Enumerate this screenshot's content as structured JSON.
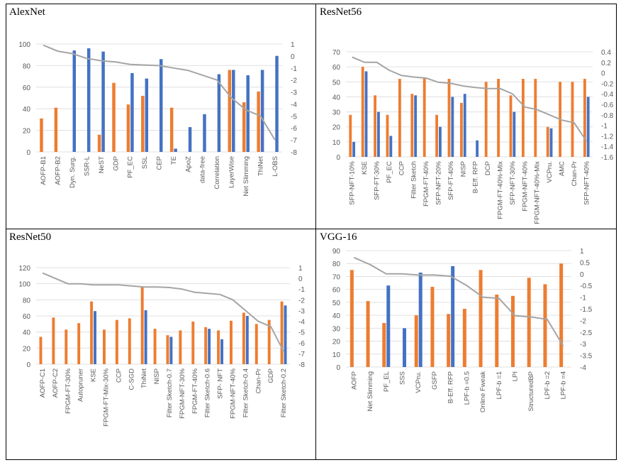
{
  "colors": {
    "orange": "#ED7D31",
    "blue": "#4472C4",
    "line": "#A5A5A5",
    "grid": "#E0E0E0",
    "text": "#595959"
  },
  "chart_data": [
    {
      "type": "bar",
      "title": "AlexNet",
      "categories": [
        "AOFP-B1",
        "AOFP-B2",
        "Dyn. Surg.",
        "SSR-L",
        "NeST",
        "GDP",
        "PF_EC",
        "SSL",
        "CEP",
        "TE",
        "ApoZ",
        "data-free",
        "Correlation",
        "LayerWise",
        "Net Slimming",
        "ThiNet",
        "L-OBS"
      ],
      "ylim": [
        0,
        100
      ],
      "yticks": [
        0,
        20,
        40,
        60,
        80,
        100
      ],
      "y2lim": [
        -8,
        1
      ],
      "y2ticks": [
        1,
        0,
        -1,
        -2,
        -3,
        -4,
        -5,
        -6,
        -7,
        -8
      ],
      "series": [
        {
          "name": "orange",
          "axis": "left",
          "values": [
            31,
            41,
            null,
            null,
            16,
            64,
            44,
            52,
            null,
            41,
            null,
            null,
            null,
            76,
            46,
            56,
            null
          ]
        },
        {
          "name": "blue",
          "axis": "left",
          "values": [
            null,
            null,
            94,
            96,
            93,
            null,
            73,
            68,
            86,
            3,
            23,
            35,
            72,
            76,
            71,
            76,
            89
          ]
        },
        {
          "name": "line",
          "axis": "right",
          "values": [
            0.9,
            0.4,
            0.2,
            -0.2,
            -0.4,
            -0.5,
            -0.7,
            -0.75,
            -0.8,
            -1.0,
            -1.2,
            -1.6,
            -2.0,
            -3.5,
            -4.5,
            -5.0,
            -7.0
          ]
        }
      ]
    },
    {
      "type": "bar",
      "title": "ResNet56",
      "categories": [
        "SFP-NFT-10%",
        "KSE",
        "SFP-FT-30%",
        "PF_EC",
        "CCP",
        "Filter Sketch",
        "FPGM-FT-40%",
        "SFP-NFT-20%",
        "SFP-FT-40%",
        "NISP",
        "B-Eff. RFP",
        "DCP",
        "FPGM-FT-40%-Mix",
        "SFP-NFT-30%",
        "FPGM-NFT-40%",
        "FPGM-NFT-40%-Mix",
        "VCPru.",
        "AMC",
        "Chan-Pr",
        "SFP-NFT-40%"
      ],
      "ylim": [
        0,
        70
      ],
      "yticks": [
        0,
        10,
        20,
        30,
        40,
        50,
        60,
        70
      ],
      "y2lim": [
        -1.6,
        0.4
      ],
      "y2ticks": [
        "0.4",
        "0.2",
        "0",
        "-0.2",
        "-0.4",
        "-0.6",
        "-0.8",
        "-1",
        "-1.2",
        "-1.4",
        "-1.6"
      ],
      "series": [
        {
          "name": "orange",
          "axis": "left",
          "values": [
            28,
            60,
            41,
            28,
            52,
            42,
            53,
            28,
            52,
            36,
            null,
            50,
            52,
            41,
            52,
            52,
            20,
            50,
            50,
            52
          ]
        },
        {
          "name": "blue",
          "axis": "left",
          "values": [
            10,
            57,
            30,
            14,
            null,
            41,
            null,
            20,
            40,
            42,
            11,
            null,
            null,
            30,
            null,
            null,
            19,
            null,
            null,
            40
          ]
        },
        {
          "name": "line",
          "axis": "right",
          "values": [
            0.3,
            0.2,
            0.2,
            0.05,
            -0.05,
            -0.08,
            -0.1,
            -0.18,
            -0.2,
            -0.25,
            -0.28,
            -0.3,
            -0.3,
            -0.4,
            -0.65,
            -0.7,
            -0.8,
            -0.9,
            -0.95,
            -1.3
          ]
        }
      ]
    },
    {
      "type": "bar",
      "title": "ResNet50",
      "categories": [
        "AOFP-C1",
        "AOFP-C2",
        "FPGM-FT-30%",
        "Autopruner",
        "KSE",
        "FPGM-FT-Mix-30%",
        "CCP",
        "C-SGD",
        "ThiNet",
        "NISP",
        "Filter Sketch-0.7",
        "FPGM-NFT-30%",
        "FPGM-FT-40%",
        "Filter Sketch-0.6",
        "SFP- NFT",
        "FPGM-NFT-40%",
        "Filter Sketch-0.4",
        "Chan-Pr",
        "GDP",
        "Filter Sketch-0.2"
      ],
      "ylim": [
        0,
        120
      ],
      "yticks": [
        0,
        20,
        40,
        60,
        80,
        100,
        120
      ],
      "y2lim": [
        -8,
        1
      ],
      "y2ticks": [
        1,
        0,
        -1,
        -2,
        -3,
        -4,
        -5,
        -6,
        -7,
        -8
      ],
      "series": [
        {
          "name": "orange",
          "axis": "left",
          "values": [
            34,
            58,
            43,
            51,
            78,
            43,
            55,
            57,
            96,
            44,
            36,
            42,
            53,
            46,
            42,
            54,
            64,
            50,
            55,
            78
          ]
        },
        {
          "name": "blue",
          "axis": "left",
          "values": [
            null,
            null,
            null,
            null,
            66,
            null,
            null,
            null,
            67,
            null,
            34,
            null,
            null,
            44,
            31,
            null,
            60,
            null,
            null,
            73
          ]
        },
        {
          "name": "line",
          "axis": "right",
          "values": [
            0.5,
            0.0,
            -0.5,
            -0.5,
            -0.6,
            -0.6,
            -0.6,
            -0.7,
            -0.8,
            -0.8,
            -0.85,
            -1.0,
            -1.3,
            -1.4,
            -1.5,
            -2.0,
            -3.0,
            -4.0,
            -4.5,
            -6.8
          ]
        }
      ]
    },
    {
      "type": "bar",
      "title": "VGG-16",
      "categories": [
        "AOFP",
        "Net Slimming",
        "PF_EL",
        "SSS",
        "VCPru.",
        "GSFP",
        "B-Eff. RFP",
        "LPF-b =0.5",
        "Online Fweak",
        "LPF-b =1",
        "LPI",
        "StructuredBP",
        "LPF-b =2",
        "LPF-b =4"
      ],
      "ylim": [
        0,
        90
      ],
      "yticks": [
        0,
        10,
        20,
        30,
        40,
        50,
        60,
        70,
        80,
        90
      ],
      "y2lim": [
        -4,
        1
      ],
      "y2ticks": [
        "1",
        "0.5",
        "0",
        "-0.5",
        "-1",
        "-1.5",
        "-2",
        "-2.5",
        "-3",
        "-3.5",
        "-4"
      ],
      "series": [
        {
          "name": "orange",
          "axis": "left",
          "values": [
            75,
            51,
            34,
            null,
            40,
            62,
            41,
            45,
            75,
            56,
            55,
            69,
            64,
            80
          ]
        },
        {
          "name": "blue",
          "axis": "left",
          "values": [
            null,
            null,
            63,
            30,
            73,
            null,
            78,
            null,
            null,
            null,
            null,
            null,
            null,
            null
          ]
        },
        {
          "name": "line",
          "axis": "right",
          "values": [
            0.7,
            0.4,
            0.0,
            0.0,
            -0.05,
            -0.05,
            -0.1,
            -0.5,
            -1.0,
            -1.05,
            -1.8,
            -1.85,
            -1.95,
            -3.1
          ]
        }
      ]
    }
  ]
}
